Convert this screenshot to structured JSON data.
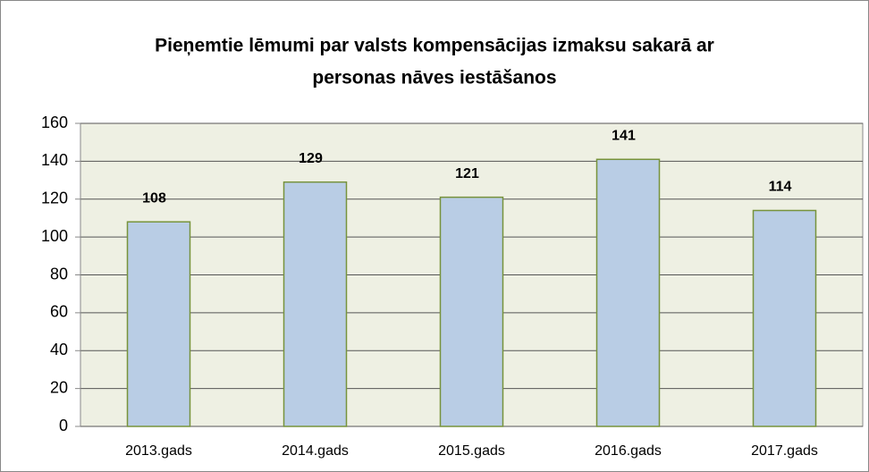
{
  "chart_data": {
    "type": "bar",
    "title": [
      "Pieņemtie lēmumi par valsts kompensācijas izmaksu sakarā ar",
      "personas nāves iestāšanos"
    ],
    "categories": [
      "2013.gads",
      "2014.gads",
      "2015.gads",
      "2016.gads",
      "2017.gads"
    ],
    "values": [
      108,
      129,
      121,
      141,
      114
    ],
    "color": "#b9cde5",
    "edge_color": "#77933c",
    "plot_background": "#eef0e3",
    "ylim": [
      0,
      160
    ],
    "yticks": [
      0,
      20,
      40,
      60,
      80,
      100,
      120,
      140,
      160
    ],
    "grid": true
  }
}
